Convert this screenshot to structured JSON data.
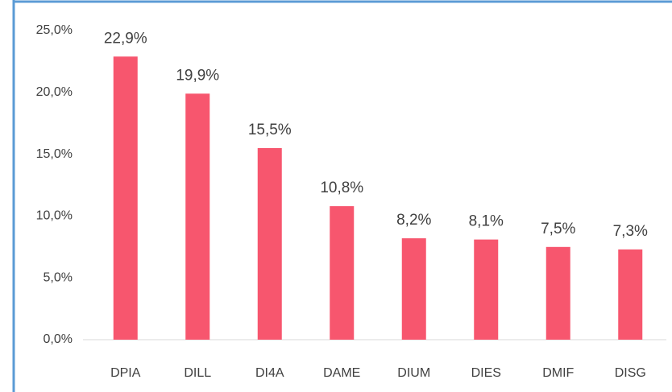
{
  "chart_data": {
    "type": "bar",
    "categories": [
      "DPIA",
      "DILL",
      "DI4A",
      "DAME",
      "DIUM",
      "DIES",
      "DMIF",
      "DISG"
    ],
    "values": [
      22.9,
      19.9,
      15.5,
      10.8,
      8.2,
      8.1,
      7.5,
      7.3
    ],
    "value_labels": [
      "22,9%",
      "19,9%",
      "15,5%",
      "10,8%",
      "8,2%",
      "8,1%",
      "7,5%",
      "7,3%"
    ],
    "color": "#f7566e",
    "ylim": [
      0,
      25
    ],
    "yticks": [
      {
        "value": 0,
        "label": "0,0%"
      },
      {
        "value": 5,
        "label": "5,0%"
      },
      {
        "value": 10,
        "label": "10,0%"
      },
      {
        "value": 15,
        "label": "15,0%"
      },
      {
        "value": 20,
        "label": "20,0%"
      },
      {
        "value": 25,
        "label": "25,0%"
      }
    ],
    "grid": false
  }
}
